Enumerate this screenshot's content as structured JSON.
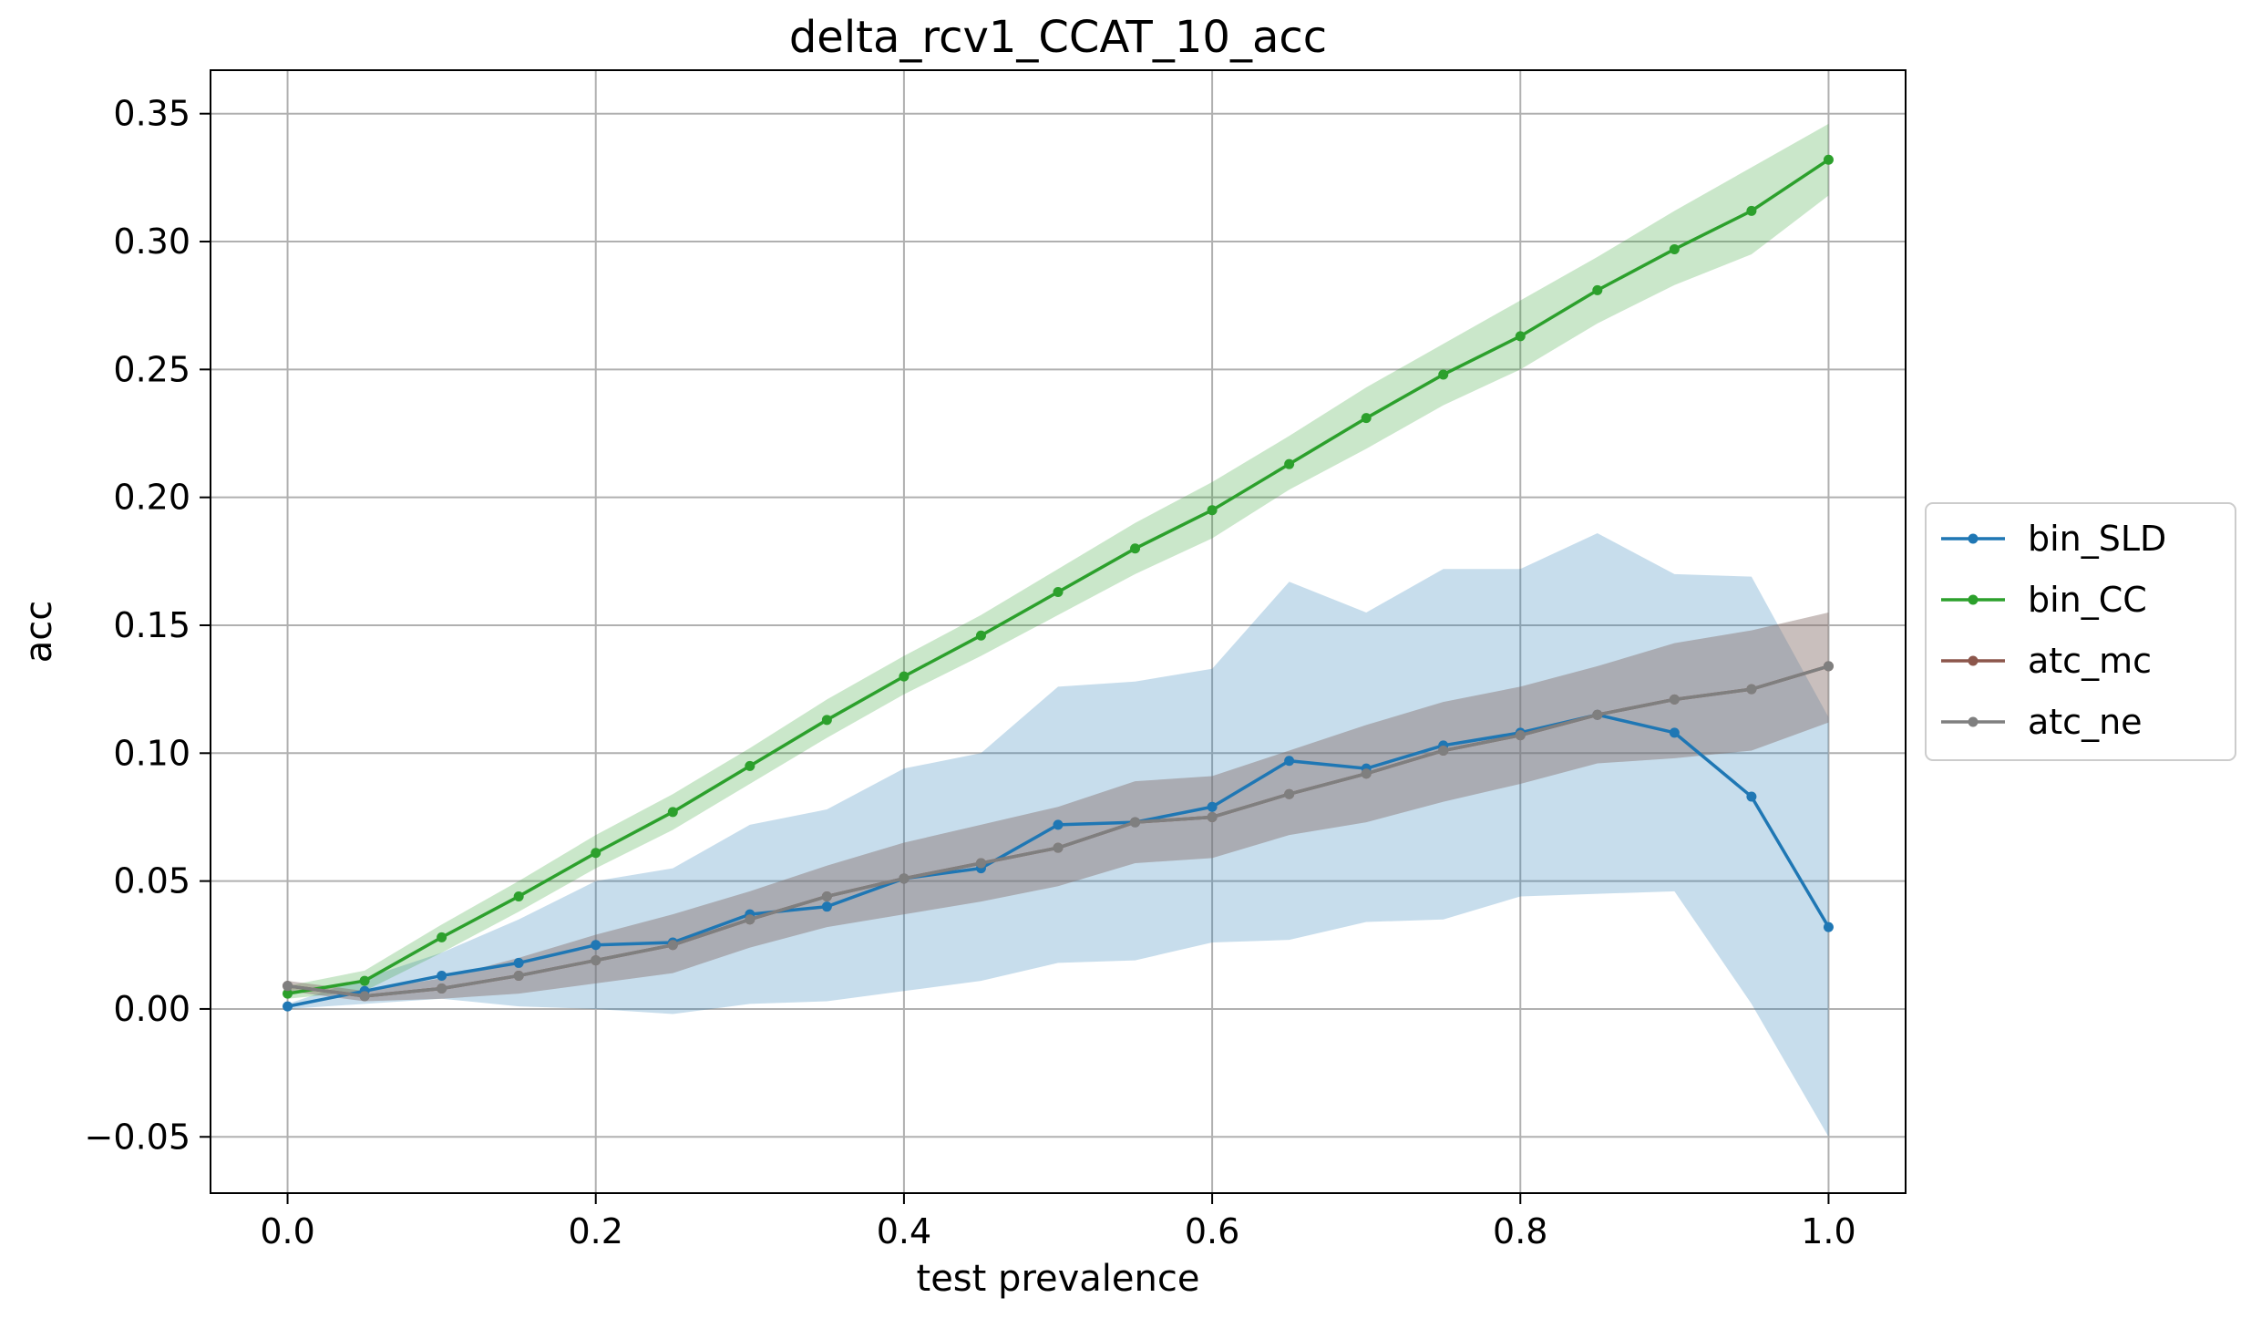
{
  "chart_data": {
    "type": "line",
    "title": "delta_rcv1_CCAT_10_acc",
    "xlabel": "test prevalence",
    "ylabel": "acc",
    "xlim": [
      -0.05,
      1.05
    ],
    "ylim": [
      -0.072,
      0.367
    ],
    "x_ticks": [
      0.0,
      0.2,
      0.4,
      0.6,
      0.8,
      1.0
    ],
    "x_tick_labels": [
      "0.0",
      "0.2",
      "0.4",
      "0.6",
      "0.8",
      "1.0"
    ],
    "y_ticks": [
      -0.05,
      0.0,
      0.05,
      0.1,
      0.15,
      0.2,
      0.25,
      0.3,
      0.35
    ],
    "y_tick_labels": [
      "−0.05",
      "0.00",
      "0.05",
      "0.10",
      "0.15",
      "0.20",
      "0.25",
      "0.30",
      "0.35"
    ],
    "grid": true,
    "legend_position": "center-right-outside",
    "x": [
      0.0,
      0.05,
      0.1,
      0.15,
      0.2,
      0.25,
      0.3,
      0.35,
      0.4,
      0.45,
      0.5,
      0.55,
      0.6,
      0.65,
      0.7,
      0.75,
      0.8,
      0.85,
      0.9,
      0.95,
      1.0
    ],
    "series": [
      {
        "name": "bin_SLD",
        "color": "#1f77b4",
        "values": [
          0.001,
          0.007,
          0.013,
          0.018,
          0.025,
          0.026,
          0.037,
          0.04,
          0.051,
          0.055,
          0.072,
          0.073,
          0.079,
          0.097,
          0.094,
          0.103,
          0.108,
          0.115,
          0.108,
          0.083,
          0.032
        ],
        "band_low": [
          0.0,
          0.002,
          0.004,
          0.001,
          0.0,
          -0.002,
          0.002,
          0.003,
          0.007,
          0.011,
          0.018,
          0.019,
          0.026,
          0.027,
          0.034,
          0.035,
          0.044,
          0.045,
          0.046,
          0.002,
          -0.05
        ],
        "band_high": [
          0.002,
          0.012,
          0.022,
          0.035,
          0.05,
          0.055,
          0.072,
          0.078,
          0.094,
          0.1,
          0.126,
          0.128,
          0.133,
          0.167,
          0.155,
          0.172,
          0.172,
          0.186,
          0.17,
          0.169,
          0.114
        ]
      },
      {
        "name": "bin_CC",
        "color": "#2ca02c",
        "values": [
          0.006,
          0.011,
          0.028,
          0.044,
          0.061,
          0.077,
          0.095,
          0.113,
          0.13,
          0.146,
          0.163,
          0.18,
          0.195,
          0.213,
          0.231,
          0.248,
          0.263,
          0.281,
          0.297,
          0.312,
          0.332
        ],
        "band_low": [
          0.004,
          0.007,
          0.022,
          0.038,
          0.055,
          0.07,
          0.088,
          0.106,
          0.123,
          0.138,
          0.154,
          0.17,
          0.184,
          0.203,
          0.219,
          0.236,
          0.25,
          0.268,
          0.283,
          0.295,
          0.318
        ],
        "band_high": [
          0.009,
          0.015,
          0.033,
          0.05,
          0.068,
          0.084,
          0.102,
          0.121,
          0.138,
          0.154,
          0.172,
          0.19,
          0.206,
          0.224,
          0.243,
          0.26,
          0.277,
          0.294,
          0.312,
          0.329,
          0.346
        ]
      },
      {
        "name": "atc_mc",
        "color": "#8c564b",
        "values": [
          0.009,
          0.005,
          0.008,
          0.013,
          0.019,
          0.025,
          0.035,
          0.044,
          0.051,
          0.057,
          0.063,
          0.073,
          0.075,
          0.084,
          0.092,
          0.101,
          0.107,
          0.115,
          0.121,
          0.125,
          0.134
        ],
        "band_low": [
          0.007,
          0.003,
          0.004,
          0.006,
          0.01,
          0.014,
          0.024,
          0.032,
          0.037,
          0.042,
          0.048,
          0.057,
          0.059,
          0.068,
          0.073,
          0.081,
          0.088,
          0.096,
          0.098,
          0.101,
          0.112
        ],
        "band_high": [
          0.011,
          0.007,
          0.012,
          0.02,
          0.029,
          0.037,
          0.046,
          0.056,
          0.065,
          0.072,
          0.079,
          0.089,
          0.091,
          0.101,
          0.111,
          0.12,
          0.126,
          0.134,
          0.143,
          0.148,
          0.155
        ]
      },
      {
        "name": "atc_ne",
        "color": "#7f7f7f",
        "values": [
          0.009,
          0.005,
          0.008,
          0.013,
          0.019,
          0.025,
          0.035,
          0.044,
          0.051,
          0.057,
          0.063,
          0.073,
          0.075,
          0.084,
          0.092,
          0.101,
          0.107,
          0.115,
          0.121,
          0.125,
          0.134
        ],
        "band_low": [
          0.007,
          0.003,
          0.004,
          0.006,
          0.01,
          0.014,
          0.024,
          0.032,
          0.037,
          0.042,
          0.048,
          0.057,
          0.059,
          0.068,
          0.073,
          0.081,
          0.088,
          0.096,
          0.098,
          0.101,
          0.112
        ],
        "band_high": [
          0.011,
          0.007,
          0.012,
          0.02,
          0.029,
          0.037,
          0.046,
          0.056,
          0.065,
          0.072,
          0.079,
          0.089,
          0.091,
          0.101,
          0.111,
          0.12,
          0.126,
          0.134,
          0.143,
          0.148,
          0.155
        ]
      }
    ]
  }
}
